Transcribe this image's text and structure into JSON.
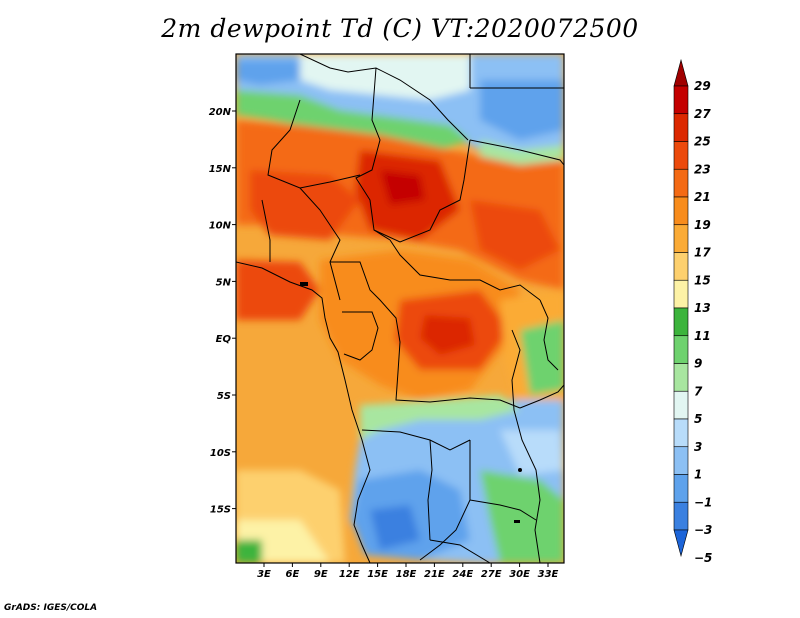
{
  "title": "2m dewpoint Td (C) VT:2020072500",
  "credit": "GrADS: IGES/COLA",
  "map": {
    "lat_labels": [
      "20N",
      "15N",
      "10N",
      "5N",
      "EQ",
      "5S",
      "10S",
      "15S"
    ],
    "lon_labels": [
      "3E",
      "6E",
      "9E",
      "12E",
      "15E",
      "18E",
      "21E",
      "24E",
      "27E",
      "30E",
      "33E"
    ]
  },
  "colorbar": {
    "labels": [
      "29",
      "27",
      "25",
      "23",
      "21",
      "19",
      "17",
      "15",
      "13",
      "11",
      "9",
      "7",
      "5",
      "3",
      "1",
      "−1",
      "−3",
      "−5"
    ],
    "colors": [
      "#a00000",
      "#c40000",
      "#dc2800",
      "#ec4a0c",
      "#f46a14",
      "#f88c1c",
      "#fbab36",
      "#fdd06e",
      "#fdf2a6",
      "#3cb43c",
      "#6ed26e",
      "#a8e6a0",
      "#e2f6f2",
      "#b8dcfa",
      "#8cc0f4",
      "#5ea2ec",
      "#3a80e0",
      "#1c64d8"
    ]
  }
}
